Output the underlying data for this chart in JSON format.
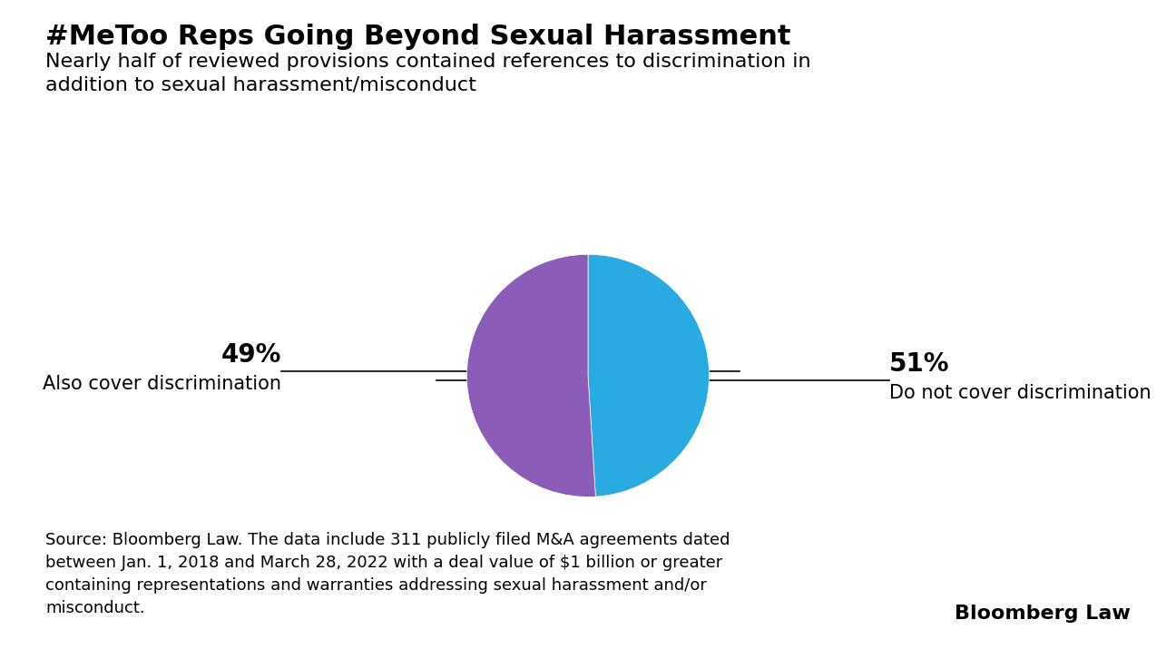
{
  "title": "#MeToo Reps Going Beyond Sexual Harassment",
  "subtitle": "Nearly half of reviewed provisions contained references to discrimination in\naddition to sexual harassment/misconduct",
  "slices": [
    49,
    51
  ],
  "colors": [
    "#29ABE2",
    "#8B5CB8"
  ],
  "labels_pct": [
    "49%",
    "51%"
  ],
  "labels_desc": [
    "Also cover discrimination",
    "Do not cover discrimination"
  ],
  "source_text": "Source: Bloomberg Law. The data include 311 publicly filed M&A agreements dated\nbetween Jan. 1, 2018 and March 28, 2022 with a deal value of $1 billion or greater\ncontaining representations and warranties addressing sexual harassment and/or\nmisconduct.",
  "brand": "Bloomberg Law",
  "background_color": "#FFFFFF",
  "title_fontsize": 22,
  "subtitle_fontsize": 16,
  "label_pct_fontsize": 20,
  "label_desc_fontsize": 15,
  "source_fontsize": 13,
  "brand_fontsize": 16
}
